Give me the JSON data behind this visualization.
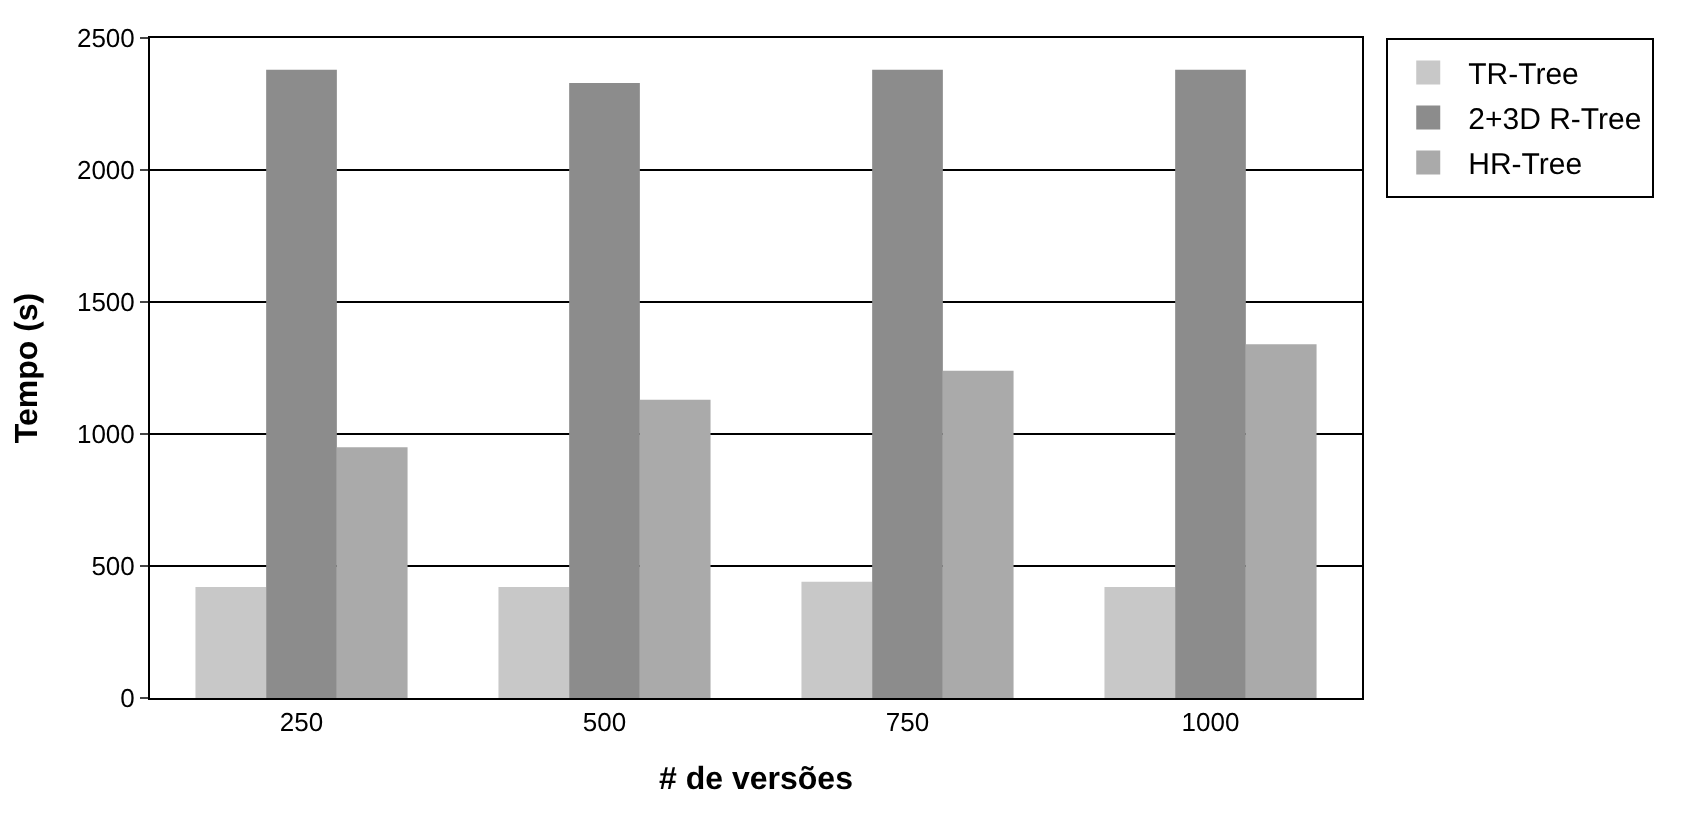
{
  "chart_data": {
    "type": "bar",
    "xlabel": "# de versões",
    "ylabel": "Tempo (s)",
    "categories": [
      "250",
      "500",
      "750",
      "1000"
    ],
    "series": [
      {
        "name": "TR-Tree",
        "color": "#c8c8c8",
        "values": [
          420,
          420,
          440,
          420
        ]
      },
      {
        "name": "2+3D R-Tree",
        "color": "#8c8c8c",
        "values": [
          2380,
          2330,
          2380,
          2380
        ]
      },
      {
        "name": "HR-Tree",
        "color": "#aaaaaa",
        "values": [
          950,
          1130,
          1240,
          1340
        ]
      }
    ],
    "ylim": [
      0,
      2500
    ],
    "yticks": [
      0,
      500,
      1000,
      1500,
      2000,
      2500
    ],
    "grid": "y",
    "legend": "top right"
  }
}
